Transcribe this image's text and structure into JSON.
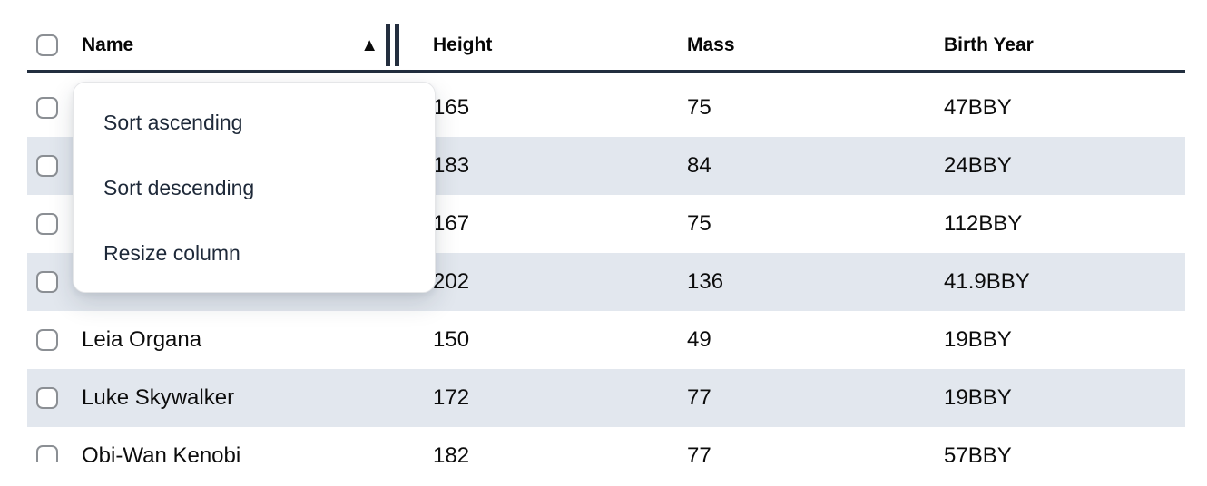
{
  "table": {
    "header": {
      "columns": [
        "Name",
        "Height",
        "Mass",
        "Birth Year"
      ],
      "sorted_column": "Name",
      "sort_direction": "ascending",
      "sort_indicator_glyph": "▲"
    },
    "rows": [
      {
        "name": "",
        "height": "165",
        "mass": "75",
        "birth_year": "47BBY"
      },
      {
        "name": "",
        "height": "183",
        "mass": "84",
        "birth_year": "24BBY"
      },
      {
        "name": "",
        "height": "167",
        "mass": "75",
        "birth_year": "112BBY"
      },
      {
        "name": "",
        "height": "202",
        "mass": "136",
        "birth_year": "41.9BBY"
      },
      {
        "name": "Leia Organa",
        "height": "150",
        "mass": "49",
        "birth_year": "19BBY"
      },
      {
        "name": "Luke Skywalker",
        "height": "172",
        "mass": "77",
        "birth_year": "19BBY"
      },
      {
        "name": "Obi-Wan Kenobi",
        "height": "182",
        "mass": "77",
        "birth_year": "57BBY"
      }
    ]
  },
  "context_menu": {
    "items": [
      "Sort ascending",
      "Sort descending",
      "Resize column"
    ]
  },
  "colors": {
    "stripe": "#e2e7ee",
    "header_border": "#222e3f",
    "menu_text": "#1e2939",
    "cell_text": "#0c0c0c"
  }
}
